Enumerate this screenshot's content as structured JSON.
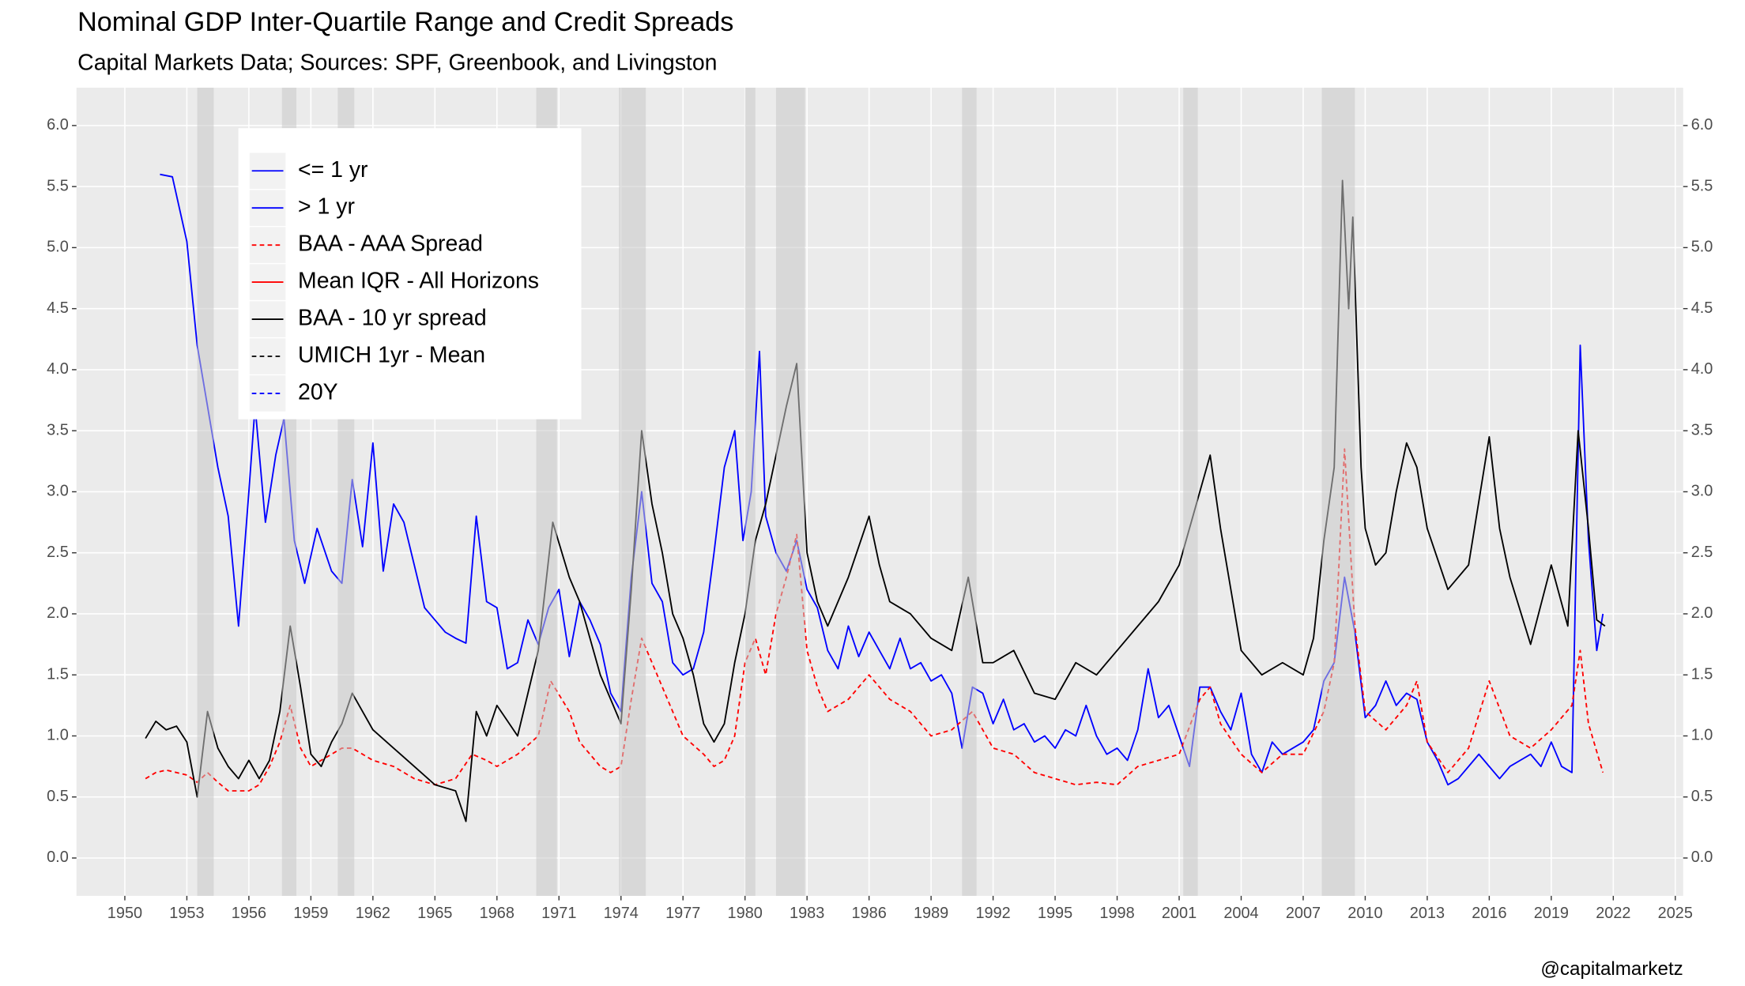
{
  "chart_data": {
    "type": "line",
    "title": "Nominal GDP Inter-Quartile Range and Credit Spreads",
    "subtitle": "Capital Markets Data; Sources: SPF, Greenbook, and Livingston",
    "caption": "@capitalmarketz",
    "xlim": [
      1947.66,
      2025.38
    ],
    "xticks": [
      1950,
      1953,
      1956,
      1959,
      1962,
      1965,
      1968,
      1971,
      1974,
      1977,
      1980,
      1983,
      1986,
      1989,
      1992,
      1995,
      1998,
      2001,
      2004,
      2007,
      2010,
      2013,
      2016,
      2019,
      2022,
      2025
    ],
    "ylim": [
      -0.31,
      6.31
    ],
    "yticks": [
      {
        "value": 0,
        "label": "0.0"
      },
      0.5,
      {
        "value": 1,
        "label": "1.0"
      },
      1.5,
      {
        "value": 2,
        "label": "2.0"
      },
      2.5,
      {
        "value": 3,
        "label": "3.0"
      },
      3.5,
      {
        "value": 4,
        "label": "4.0"
      },
      4.5,
      {
        "value": 5,
        "label": "5.0"
      },
      5.5,
      {
        "value": 6,
        "label": "6.0"
      }
    ],
    "secondary_axis": true,
    "grid": true,
    "legend_position": "top-left",
    "recession_color": "#C8C8C8",
    "recessions": [
      [
        1953.5,
        1954.3
      ],
      [
        1957.6,
        1958.3
      ],
      [
        1960.3,
        1961.1
      ],
      [
        1969.9,
        1970.9
      ],
      [
        1973.9,
        1975.2
      ],
      [
        1980.0,
        1980.5
      ],
      [
        1981.5,
        1982.9
      ],
      [
        1990.5,
        1991.2
      ],
      [
        2001.2,
        2001.9
      ],
      [
        2007.9,
        2009.5
      ]
    ],
    "series": [
      {
        "name": "<= 1 yr",
        "color": "#0000FF",
        "linetype": "solid",
        "x": [
          1951.7,
          1952.3,
          1953.0,
          1953.5,
          1954.0,
          1954.5,
          1955.0,
          1955.5,
          1956.0,
          1956.3,
          1956.8,
          1957.3,
          1957.7,
          1958.2,
          1958.7,
          1959.3,
          1960.0,
          1960.5,
          1961.0,
          1961.5,
          1962.0,
          1962.5,
          1963.0,
          1963.5,
          1964.0,
          1964.5,
          1965.0,
          1965.5,
          1966.0,
          1966.5,
          1967.0,
          1967.5,
          1968.0,
          1968.5,
          1969.0,
          1969.5,
          1970.0,
          1970.5,
          1971.0,
          1971.5,
          1972.0,
          1972.5,
          1973.0,
          1973.5,
          1974.0,
          1974.5,
          1975.0,
          1975.5,
          1976.0,
          1976.5,
          1977.0,
          1977.5,
          1978.0,
          1978.5,
          1979.0,
          1979.5,
          1979.9,
          1980.3,
          1980.7,
          1981.0,
          1981.5,
          1982.0,
          1982.5,
          1983.0,
          1983.5,
          1984.0,
          1984.5,
          1985.0,
          1985.5,
          1986.0,
          1986.5,
          1987.0,
          1987.5,
          1988.0,
          1988.5,
          1989.0,
          1989.5,
          1990.0,
          1990.5,
          1991.0,
          1991.5,
          1992.0,
          1992.5,
          1993.0,
          1993.5,
          1994.0,
          1994.5,
          1995.0,
          1995.5,
          1996.0,
          1996.5,
          1997.0,
          1997.5,
          1998.0,
          1998.5,
          1999.0,
          1999.5,
          2000.0,
          2000.5,
          2001.0,
          2001.5,
          2002.0,
          2002.5,
          2003.0,
          2003.5,
          2004.0,
          2004.5,
          2005.0,
          2005.5,
          2006.0,
          2006.5,
          2007.0,
          2007.5,
          2008.0,
          2008.5,
          2009.0,
          2009.5,
          2010.0,
          2010.5,
          2011.0,
          2011.5,
          2012.0,
          2012.5,
          2013.0,
          2013.5,
          2014.0,
          2014.5,
          2015.0,
          2015.5,
          2016.0,
          2016.5,
          2017.0,
          2017.5,
          2018.0,
          2018.5,
          2019.0,
          2019.5,
          2020.0,
          2020.4,
          2020.8,
          2021.2,
          2021.5
        ],
        "values": [
          5.6,
          5.58,
          5.05,
          4.2,
          3.7,
          3.2,
          2.8,
          1.9,
          3.0,
          3.7,
          2.75,
          3.3,
          3.6,
          2.6,
          2.25,
          2.7,
          2.35,
          2.25,
          3.1,
          2.55,
          3.4,
          2.35,
          2.9,
          2.75,
          2.4,
          2.05,
          1.95,
          1.85,
          1.8,
          1.76,
          2.8,
          2.1,
          2.05,
          1.55,
          1.6,
          1.95,
          1.75,
          2.05,
          2.2,
          1.65,
          2.1,
          1.95,
          1.75,
          1.35,
          1.2,
          2.3,
          3.0,
          2.25,
          2.1,
          1.6,
          1.5,
          1.55,
          1.85,
          2.5,
          3.2,
          3.5,
          2.6,
          3.0,
          4.15,
          2.8,
          2.5,
          2.35,
          2.6,
          2.2,
          2.05,
          1.7,
          1.55,
          1.9,
          1.65,
          1.85,
          1.7,
          1.55,
          1.8,
          1.55,
          1.6,
          1.45,
          1.5,
          1.35,
          0.9,
          1.4,
          1.35,
          1.1,
          1.3,
          1.05,
          1.1,
          0.95,
          1.0,
          0.9,
          1.05,
          1.0,
          1.25,
          1.0,
          0.85,
          0.9,
          0.8,
          1.05,
          1.55,
          1.15,
          1.25,
          1.0,
          0.75,
          1.4,
          1.4,
          1.2,
          1.05,
          1.35,
          0.85,
          0.7,
          0.95,
          0.85,
          0.9,
          0.95,
          1.05,
          1.45,
          1.6,
          2.3,
          1.85,
          1.15,
          1.25,
          1.45,
          1.25,
          1.35,
          1.3,
          0.95,
          0.8,
          0.6,
          0.65,
          0.75,
          0.85,
          0.75,
          0.65,
          0.75,
          0.8,
          0.85,
          0.75,
          0.95,
          0.75,
          0.7,
          4.2,
          2.6,
          1.7,
          2.0
        ]
      },
      {
        "name": "> 1 yr",
        "color": "#0000FF",
        "linetype": "solid",
        "x": [],
        "values": []
      },
      {
        "name": "BAA - AAA Spread",
        "color": "#FF0000",
        "linetype": "dashed",
        "x": [
          1951.0,
          1951.5,
          1952.0,
          1953.0,
          1953.5,
          1954.0,
          1954.5,
          1955.0,
          1956.0,
          1956.5,
          1957.0,
          1957.5,
          1958.0,
          1958.5,
          1959.0,
          1960.0,
          1960.5,
          1961.0,
          1962.0,
          1963.0,
          1964.0,
          1965.0,
          1966.0,
          1966.8,
          1967.5,
          1968.0,
          1969.0,
          1970.0,
          1970.6,
          1971.5,
          1972.0,
          1973.0,
          1973.5,
          1974.0,
          1974.5,
          1975.0,
          1975.5,
          1976.0,
          1976.5,
          1977.0,
          1978.0,
          1978.5,
          1979.0,
          1979.5,
          1980.0,
          1980.5,
          1981.0,
          1981.5,
          1982.0,
          1982.5,
          1983.0,
          1983.5,
          1984.0,
          1985.0,
          1986.0,
          1987.0,
          1988.0,
          1989.0,
          1990.0,
          1991.0,
          1992.0,
          1993.0,
          1994.0,
          1995.0,
          1996.0,
          1997.0,
          1998.0,
          1999.0,
          2000.0,
          2001.0,
          2002.0,
          2002.5,
          2003.0,
          2004.0,
          2005.0,
          2006.0,
          2007.0,
          2008.0,
          2008.5,
          2009.0,
          2009.5,
          2010.0,
          2011.0,
          2012.0,
          2012.5,
          2013.0,
          2014.0,
          2015.0,
          2016.0,
          2017.0,
          2018.0,
          2019.0,
          2020.0,
          2020.4,
          2020.8,
          2021.5
        ],
        "values": [
          0.65,
          0.7,
          0.72,
          0.68,
          0.62,
          0.7,
          0.62,
          0.55,
          0.55,
          0.6,
          0.75,
          0.95,
          1.25,
          0.9,
          0.75,
          0.85,
          0.9,
          0.9,
          0.8,
          0.75,
          0.65,
          0.6,
          0.65,
          0.85,
          0.8,
          0.75,
          0.85,
          1.0,
          1.45,
          1.2,
          0.95,
          0.75,
          0.7,
          0.75,
          1.3,
          1.8,
          1.6,
          1.4,
          1.2,
          1.0,
          0.85,
          0.75,
          0.8,
          1.0,
          1.6,
          1.8,
          1.5,
          2.0,
          2.3,
          2.65,
          1.7,
          1.4,
          1.2,
          1.3,
          1.5,
          1.3,
          1.2,
          1.0,
          1.05,
          1.2,
          0.9,
          0.85,
          0.7,
          0.65,
          0.6,
          0.62,
          0.6,
          0.75,
          0.8,
          0.85,
          1.3,
          1.4,
          1.1,
          0.85,
          0.7,
          0.85,
          0.85,
          1.2,
          1.6,
          3.35,
          1.9,
          1.2,
          1.05,
          1.25,
          1.45,
          0.95,
          0.7,
          0.9,
          1.45,
          1.0,
          0.9,
          1.05,
          1.25,
          1.7,
          1.1,
          0.7
        ]
      },
      {
        "name": "Mean IQR - All Horizons",
        "color": "#FF0000",
        "linetype": "solid",
        "x": [],
        "values": []
      },
      {
        "name": "BAA - 10 yr spread",
        "color": "#000000",
        "linetype": "solid",
        "x": [
          1951.0,
          1951.5,
          1952.0,
          1952.5,
          1953.0,
          1953.5,
          1954.0,
          1954.5,
          1955.0,
          1955.5,
          1956.0,
          1956.5,
          1957.0,
          1957.5,
          1958.0,
          1958.5,
          1959.0,
          1959.5,
          1960.0,
          1960.5,
          1961.0,
          1961.5,
          1962.0,
          1963.0,
          1964.0,
          1965.0,
          1966.0,
          1966.5,
          1967.0,
          1967.5,
          1968.0,
          1969.0,
          1969.5,
          1970.0,
          1970.7,
          1971.5,
          1972.0,
          1972.5,
          1973.0,
          1973.5,
          1974.0,
          1974.5,
          1975.0,
          1975.5,
          1976.0,
          1976.5,
          1977.0,
          1977.5,
          1978.0,
          1978.5,
          1979.0,
          1979.5,
          1980.0,
          1980.5,
          1981.0,
          1981.5,
          1982.0,
          1982.5,
          1983.0,
          1983.5,
          1984.0,
          1985.0,
          1986.0,
          1986.5,
          1987.0,
          1988.0,
          1989.0,
          1990.0,
          1990.8,
          1991.5,
          1992.0,
          1993.0,
          1994.0,
          1995.0,
          1996.0,
          1997.0,
          1998.0,
          1999.0,
          2000.0,
          2001.0,
          2001.5,
          2002.5,
          2003.0,
          2004.0,
          2005.0,
          2006.0,
          2007.0,
          2007.5,
          2008.0,
          2008.5,
          2008.9,
          2009.2,
          2009.4,
          2009.8,
          2010.0,
          2010.5,
          2011.0,
          2011.5,
          2012.0,
          2012.5,
          2013.0,
          2014.0,
          2015.0,
          2016.0,
          2016.5,
          2017.0,
          2018.0,
          2019.0,
          2019.8,
          2020.3,
          2020.8,
          2021.2,
          2021.6
        ],
        "values": [
          0.98,
          1.12,
          1.05,
          1.08,
          0.95,
          0.5,
          1.2,
          0.9,
          0.75,
          0.65,
          0.8,
          0.65,
          0.8,
          1.2,
          1.9,
          1.4,
          0.85,
          0.75,
          0.95,
          1.1,
          1.35,
          1.2,
          1.05,
          0.9,
          0.75,
          0.6,
          0.55,
          0.3,
          1.2,
          1.0,
          1.25,
          1.0,
          1.35,
          1.7,
          2.75,
          2.3,
          2.1,
          1.8,
          1.5,
          1.3,
          1.1,
          2.2,
          3.5,
          2.9,
          2.5,
          2.0,
          1.8,
          1.5,
          1.1,
          0.95,
          1.1,
          1.6,
          2.0,
          2.6,
          2.9,
          3.3,
          3.7,
          4.05,
          2.5,
          2.1,
          1.9,
          2.3,
          2.8,
          2.4,
          2.1,
          2.0,
          1.8,
          1.7,
          2.3,
          1.6,
          1.6,
          1.7,
          1.35,
          1.3,
          1.6,
          1.5,
          1.7,
          1.9,
          2.1,
          2.4,
          2.7,
          3.3,
          2.7,
          1.7,
          1.5,
          1.6,
          1.5,
          1.8,
          2.6,
          3.2,
          5.55,
          4.5,
          5.25,
          3.2,
          2.7,
          2.4,
          2.5,
          3.0,
          3.4,
          3.2,
          2.7,
          2.2,
          2.4,
          3.45,
          2.7,
          2.3,
          1.75,
          2.4,
          1.9,
          3.5,
          2.7,
          1.95,
          1.9
        ]
      },
      {
        "name": "UMICH 1yr - Mean",
        "color": "#000000",
        "linetype": "dashed",
        "x": [],
        "values": []
      },
      {
        "name": "20Y",
        "color": "#0000FF",
        "linetype": "dashed",
        "x": [],
        "values": []
      }
    ]
  }
}
